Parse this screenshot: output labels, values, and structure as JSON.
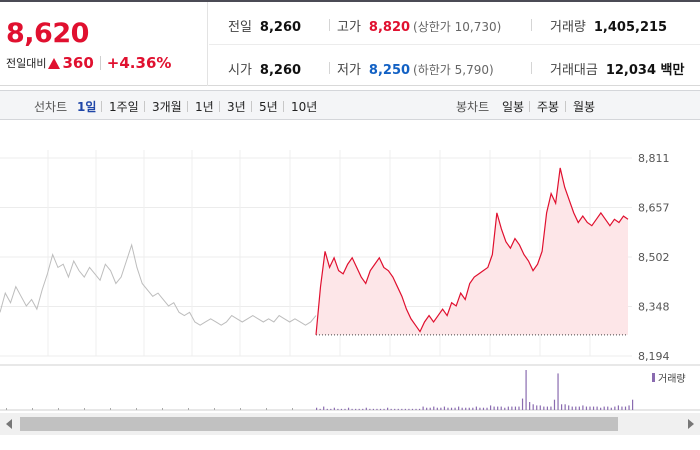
{
  "quote": {
    "price": "8,620",
    "change_label": "전일대비",
    "change_value": "360",
    "change_pct": "+4.36%",
    "prev_close_label": "전일",
    "prev_close": "8,260",
    "open_label": "시가",
    "open": "8,260",
    "high_label": "고가",
    "high": "8,820",
    "upper_limit": "(상한가 10,730)",
    "low_label": "저가",
    "low": "8,250",
    "lower_limit": "(하한가 5,790)",
    "volume_label": "거래량",
    "volume": "1,405,215",
    "value_label": "거래대금",
    "value": "12,034 백만"
  },
  "toolbar": {
    "line_label": "선차트",
    "periods": [
      "1일",
      "1주일",
      "3개월",
      "1년",
      "3년",
      "5년",
      "10년"
    ],
    "selected_period": "1일",
    "candle_label": "봉차트",
    "candles": [
      "일봉",
      "주봉",
      "월봉"
    ]
  },
  "colors": {
    "up": "#e0102f",
    "down": "#1261c4",
    "prev_line": "#bdbdbd",
    "fill": "#fde6e8",
    "volume": "#8a6bb0"
  },
  "chart_data": {
    "type": "line",
    "y_ticks": [
      "8,811",
      "8,657",
      "8,502",
      "8,348",
      "8,194"
    ],
    "ylim": [
      8194,
      8811
    ],
    "prev_close_level": 8260,
    "volume_legend": "거래량",
    "series": [
      {
        "values": [
          8330,
          8390,
          8360,
          8410,
          8380,
          8350,
          8370,
          8340,
          8400,
          8450,
          8510,
          8470,
          8480,
          8440,
          8490,
          8460,
          8440,
          8470,
          8450,
          8430,
          8480,
          8460,
          8420,
          8440,
          8490,
          8540,
          8470,
          8420,
          8400,
          8380,
          8390,
          8370,
          8350,
          8360,
          8330,
          8320,
          8330,
          8300,
          8290,
          8300,
          8310,
          8300,
          8290,
          8300,
          8320,
          8310,
          8300,
          8310,
          8320,
          8310,
          8300,
          8310,
          8300,
          8320,
          8310,
          8300,
          8310,
          8300,
          8290,
          8300,
          8320
        ]
      },
      {
        "values": [
          8260,
          8410,
          8520,
          8470,
          8500,
          8460,
          8450,
          8480,
          8500,
          8470,
          8440,
          8420,
          8460,
          8480,
          8500,
          8470,
          8460,
          8440,
          8410,
          8380,
          8340,
          8310,
          8290,
          8270,
          8300,
          8320,
          8300,
          8320,
          8340,
          8320,
          8360,
          8350,
          8390,
          8370,
          8420,
          8440,
          8450,
          8460,
          8470,
          8510,
          8640,
          8590,
          8550,
          8530,
          8560,
          8540,
          8510,
          8490,
          8460,
          8480,
          8520,
          8640,
          8700,
          8670,
          8780,
          8720,
          8680,
          8640,
          8610,
          8630,
          8610,
          8600,
          8620,
          8640,
          8620,
          8600,
          8620,
          8610,
          8630,
          8620
        ]
      }
    ],
    "volume": [
      2,
      1,
      3,
      1,
      1,
      2,
      1,
      1,
      1,
      2,
      1,
      1,
      1,
      1,
      2,
      1,
      1,
      1,
      1,
      1,
      2,
      1,
      1,
      1,
      1,
      1,
      1,
      1,
      1,
      1,
      3,
      2,
      2,
      3,
      2,
      2,
      3,
      2,
      2,
      2,
      3,
      2,
      2,
      2,
      2,
      3,
      2,
      2,
      2,
      4,
      3,
      3,
      3,
      2,
      3,
      3,
      3,
      3,
      10,
      35,
      7,
      5,
      4,
      4,
      3,
      3,
      3,
      9,
      32,
      5,
      5,
      4,
      3,
      3,
      3,
      4,
      3,
      3,
      3,
      3,
      2,
      3,
      3,
      2,
      3,
      4,
      3,
      3,
      4,
      9
    ]
  }
}
